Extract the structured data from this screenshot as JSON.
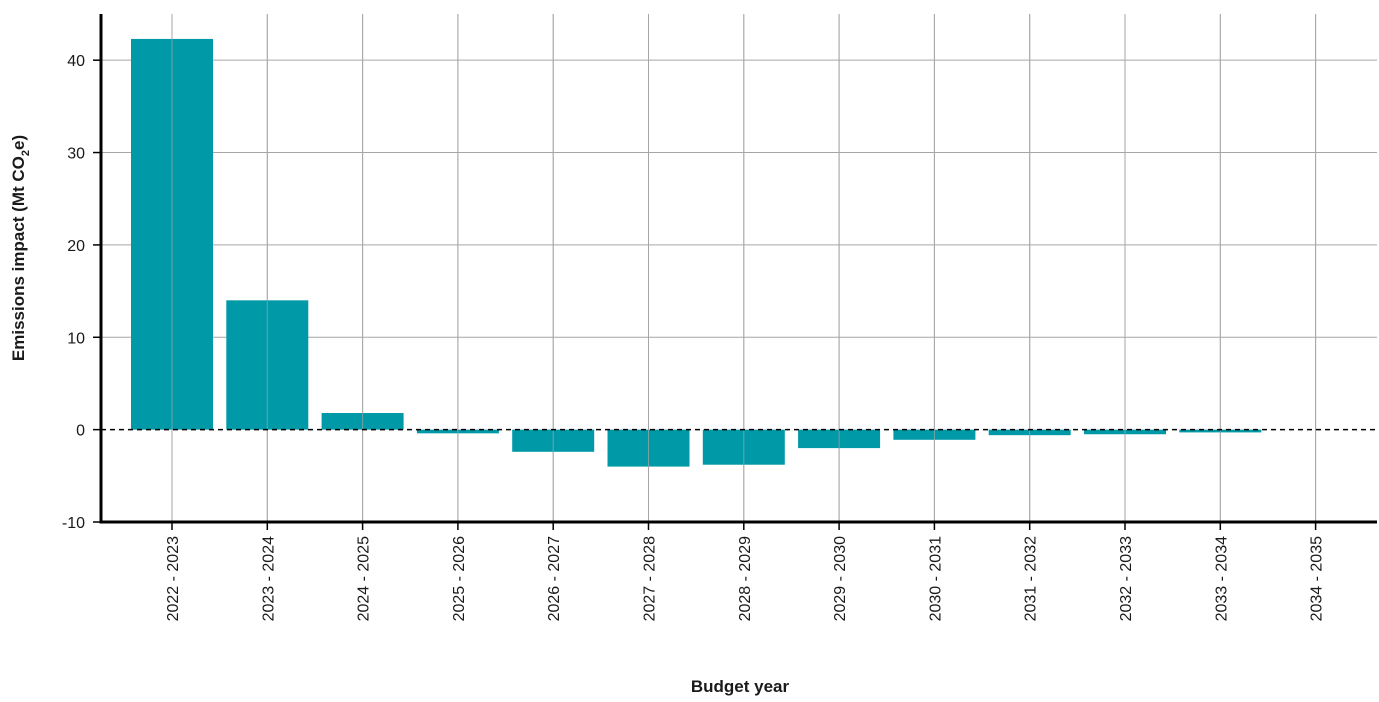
{
  "chart_data": {
    "type": "bar",
    "categories": [
      "2022 - 2023",
      "2023 - 2024",
      "2024 - 2025",
      "2025 - 2026",
      "2026 - 2027",
      "2027 - 2028",
      "2028 - 2029",
      "2029 - 2030",
      "2030 - 2031",
      "2031 - 2032",
      "2032 - 2033",
      "2033 - 2034",
      "2034 - 2035"
    ],
    "values": [
      42.3,
      14.0,
      1.8,
      -0.4,
      -2.4,
      -4.0,
      -3.8,
      -2.0,
      -1.1,
      -0.6,
      -0.5,
      -0.3,
      0.0
    ],
    "xlabel": "Budget year",
    "ylabel": {
      "main": "Emissions impact (Mt CO",
      "subscript": "2",
      "suffix": "e)"
    },
    "ylim": [
      -10,
      45
    ],
    "yticks": [
      -10,
      0,
      10,
      20,
      30,
      40
    ],
    "ytick_labels": [
      "-10",
      "0",
      "10",
      "20",
      "30",
      "40"
    ],
    "grid": true,
    "zero_line": "dashed",
    "bar_color": "#0099a8",
    "grid_color": "#a6a6a6",
    "axis_color": "#000000"
  }
}
